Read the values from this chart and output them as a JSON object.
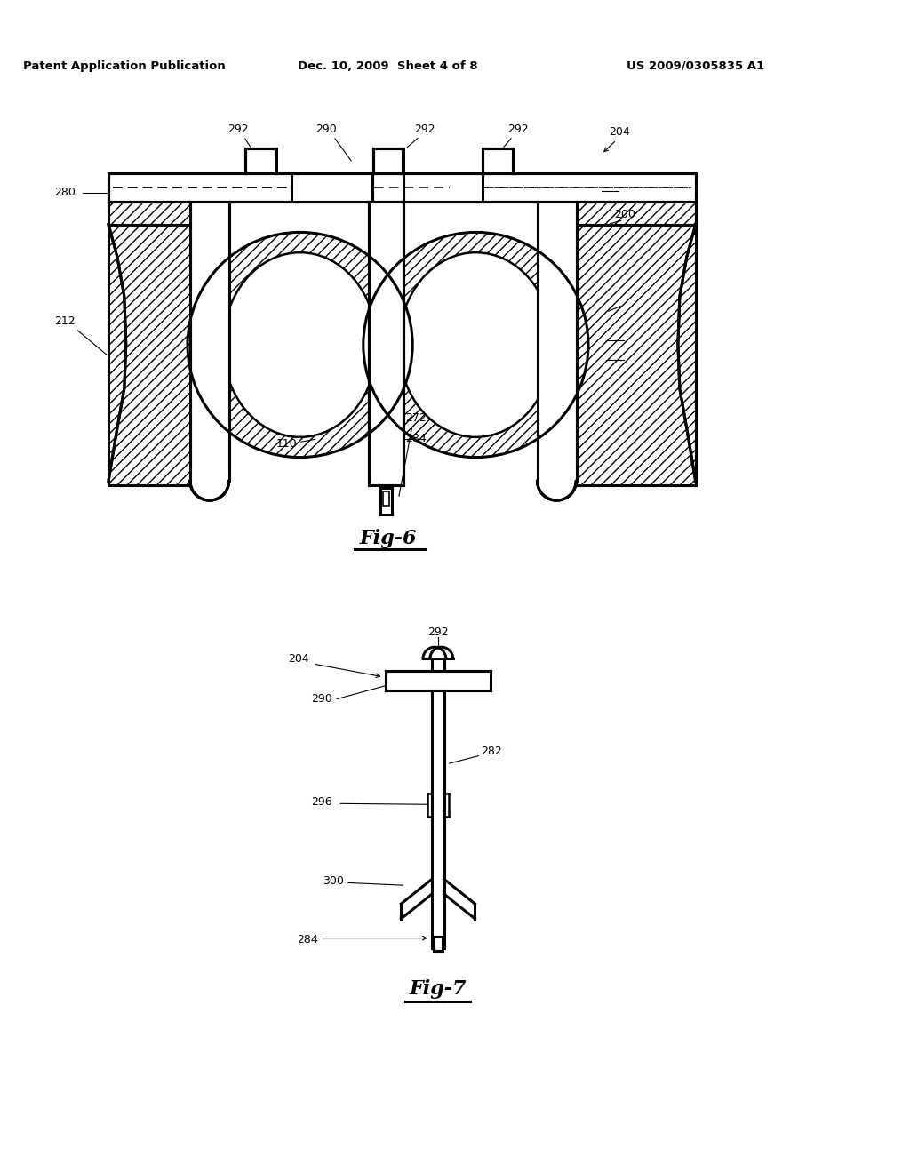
{
  "header_left": "Patent Application Publication",
  "header_mid": "Dec. 10, 2009  Sheet 4 of 8",
  "header_right": "US 2009/0305835 A1",
  "fig6_title": "Fig-6",
  "fig7_title": "Fig-7",
  "bg_color": "#ffffff",
  "line_color": "#000000"
}
